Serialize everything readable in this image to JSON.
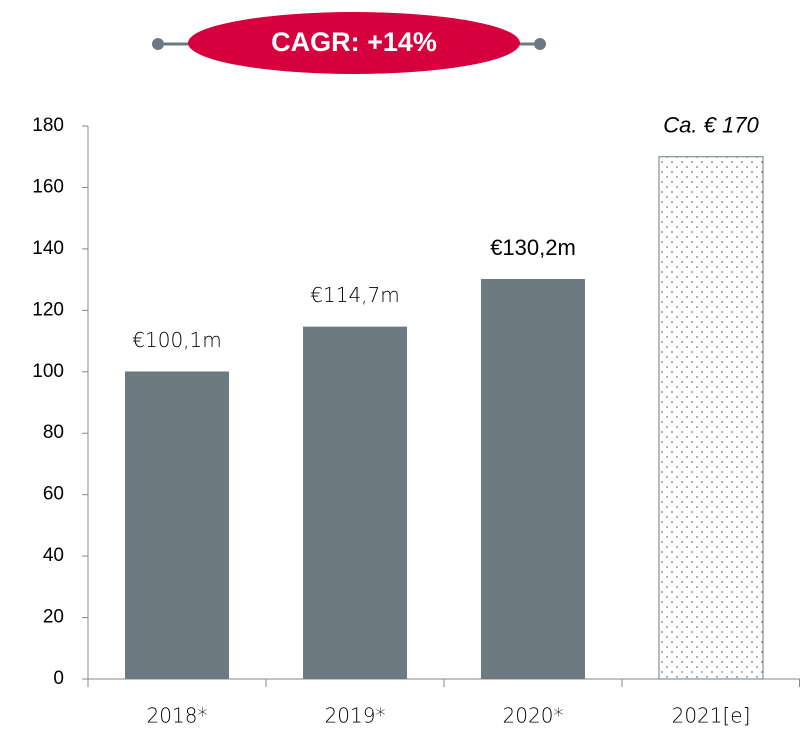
{
  "chart_data": {
    "type": "bar",
    "annotation": "CAGR: +14%",
    "categories": [
      "2018*",
      "2019*",
      "2020*",
      "2021[e]"
    ],
    "values": [
      100.1,
      114.7,
      130.2,
      170
    ],
    "value_labels": [
      "€100,1m",
      "€114,7m",
      "€130,2m",
      "Ca. € 170"
    ],
    "color": "#6d7a82",
    "pattern": [
      "solid",
      "solid",
      "solid",
      "dots"
    ],
    "ylim": [
      0,
      180
    ],
    "yticks": [
      0,
      20,
      40,
      60,
      80,
      100,
      120,
      140,
      160,
      180
    ],
    "grid": false
  }
}
